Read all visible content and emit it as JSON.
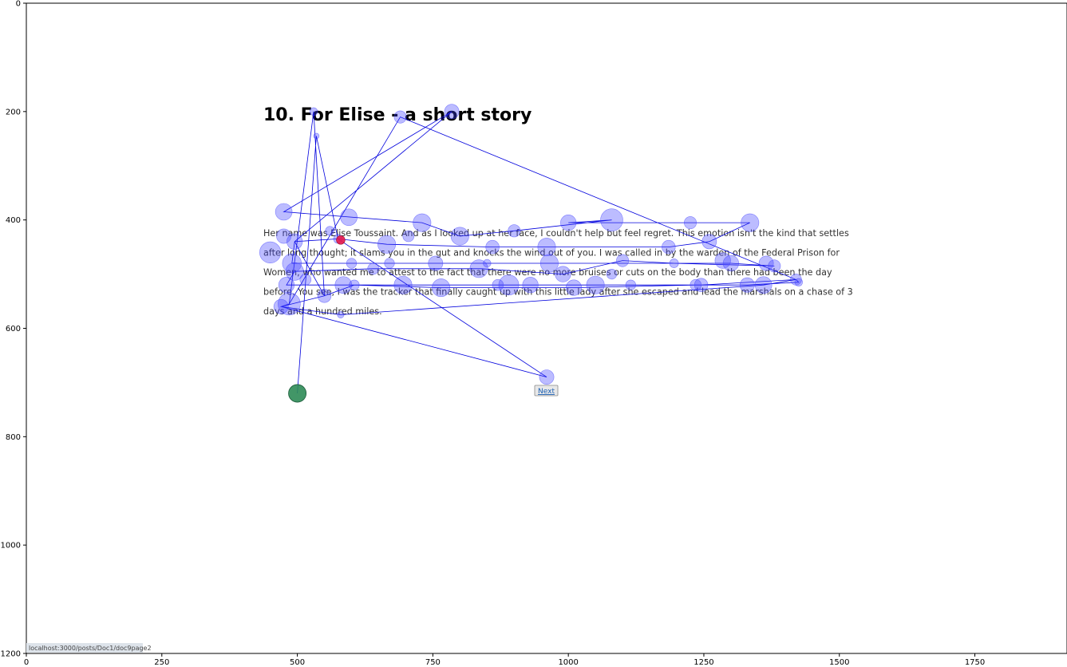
{
  "page": {
    "heading": "10. For Elise - a short story",
    "paragraph_lines": [
      "Her name was Elise Toussaint. And as I looked up at her face, I couldn't help but feel regret. This emotion isn't the kind that settles",
      "after long thought; it slams you in the gut and knocks the wind out of you. I was called in by the warden of the Federal Prison for",
      "Women, who wanted me to attest to the fact that there were no more bruises or cuts on the body than there had been the day",
      "before. You see, I was the tracker that finally caught up with this little lady after she escaped and lead the marshals on a chase of 3",
      "days and a hundred miles."
    ],
    "next_link": "Next",
    "status_url": "localhost:3000/posts/Doc1/doc9page2"
  },
  "chart_data": {
    "type": "scatter",
    "xlim": [
      0,
      1920
    ],
    "ylim": [
      1200,
      0
    ],
    "x_ticks": [
      0,
      250,
      500,
      750,
      1000,
      1250,
      1500,
      1750
    ],
    "y_ticks": [
      0,
      200,
      400,
      600,
      800,
      1000,
      1200
    ],
    "colors": {
      "fixation": "#4040ff",
      "scanpath": "#0000dd",
      "start": "#2e8b57",
      "current": "#e8174b"
    },
    "fixations": [
      [
        530,
        200,
        7
      ],
      [
        690,
        210,
        11
      ],
      [
        785,
        200,
        13
      ],
      [
        535,
        245,
        5
      ],
      [
        475,
        385,
        15
      ],
      [
        595,
        395,
        15
      ],
      [
        730,
        405,
        16
      ],
      [
        1000,
        405,
        14
      ],
      [
        1080,
        400,
        20
      ],
      [
        1225,
        405,
        11
      ],
      [
        1335,
        405,
        16
      ],
      [
        475,
        430,
        13
      ],
      [
        495,
        440,
        14
      ],
      [
        560,
        420,
        8
      ],
      [
        575,
        435,
        8
      ],
      [
        665,
        445,
        16
      ],
      [
        705,
        430,
        10
      ],
      [
        800,
        430,
        16
      ],
      [
        900,
        420,
        11
      ],
      [
        450,
        460,
        19
      ],
      [
        860,
        450,
        12
      ],
      [
        960,
        450,
        16
      ],
      [
        1185,
        450,
        12
      ],
      [
        1260,
        440,
        13
      ],
      [
        490,
        480,
        17
      ],
      [
        600,
        480,
        9
      ],
      [
        670,
        480,
        9
      ],
      [
        755,
        480,
        13
      ],
      [
        850,
        480,
        7
      ],
      [
        965,
        480,
        16
      ],
      [
        1100,
        475,
        11
      ],
      [
        1195,
        480,
        8
      ],
      [
        1300,
        480,
        14
      ],
      [
        1365,
        480,
        13
      ],
      [
        1380,
        485,
        11
      ],
      [
        495,
        495,
        16
      ],
      [
        640,
        490,
        10
      ],
      [
        835,
        490,
        16
      ],
      [
        990,
        500,
        14
      ],
      [
        1080,
        500,
        9
      ],
      [
        1285,
        475,
        14
      ],
      [
        480,
        520,
        14
      ],
      [
        515,
        510,
        10
      ],
      [
        585,
        520,
        15
      ],
      [
        605,
        520,
        9
      ],
      [
        695,
        520,
        16
      ],
      [
        765,
        525,
        16
      ],
      [
        870,
        520,
        10
      ],
      [
        890,
        520,
        18
      ],
      [
        930,
        520,
        14
      ],
      [
        1010,
        525,
        14
      ],
      [
        1050,
        520,
        16
      ],
      [
        1115,
        520,
        9
      ],
      [
        1235,
        520,
        10
      ],
      [
        1245,
        520,
        12
      ],
      [
        1330,
        520,
        13
      ],
      [
        1360,
        520,
        15
      ],
      [
        1420,
        510,
        10
      ],
      [
        1425,
        515,
        7
      ],
      [
        550,
        540,
        12
      ],
      [
        485,
        555,
        20
      ],
      [
        470,
        560,
        13
      ],
      [
        580,
        575,
        6
      ],
      [
        960,
        690,
        13
      ]
    ],
    "scanpath": [
      [
        500,
        720
      ],
      [
        535,
        245
      ],
      [
        575,
        435
      ],
      [
        960,
        690
      ],
      [
        470,
        560
      ],
      [
        485,
        555
      ],
      [
        530,
        200
      ],
      [
        550,
        540
      ],
      [
        495,
        440
      ],
      [
        785,
        200
      ],
      [
        475,
        385
      ],
      [
        730,
        405
      ],
      [
        800,
        430
      ],
      [
        900,
        420
      ],
      [
        1080,
        400
      ],
      [
        1000,
        405
      ],
      [
        1225,
        405
      ],
      [
        1335,
        405
      ],
      [
        1260,
        440
      ],
      [
        1185,
        450
      ],
      [
        960,
        450
      ],
      [
        860,
        450
      ],
      [
        665,
        445
      ],
      [
        575,
        435
      ],
      [
        495,
        440
      ],
      [
        490,
        480
      ],
      [
        670,
        480
      ],
      [
        965,
        480
      ],
      [
        1300,
        480
      ],
      [
        1380,
        485
      ],
      [
        1195,
        480
      ],
      [
        1100,
        475
      ],
      [
        990,
        500
      ],
      [
        840,
        490
      ],
      [
        640,
        490
      ],
      [
        495,
        495
      ],
      [
        480,
        520
      ],
      [
        695,
        520
      ],
      [
        890,
        520
      ],
      [
        1050,
        520
      ],
      [
        1245,
        520
      ],
      [
        1420,
        510
      ],
      [
        1425,
        515
      ],
      [
        1330,
        520
      ],
      [
        1235,
        520
      ],
      [
        1010,
        525
      ],
      [
        765,
        525
      ],
      [
        605,
        520
      ],
      [
        550,
        540
      ],
      [
        470,
        560
      ],
      [
        580,
        575
      ],
      [
        1360,
        520
      ],
      [
        1420,
        510
      ],
      [
        690,
        210
      ],
      [
        485,
        555
      ]
    ],
    "start_point": [
      500,
      720,
      13
    ],
    "current_point": [
      580,
      437,
      6
    ]
  }
}
